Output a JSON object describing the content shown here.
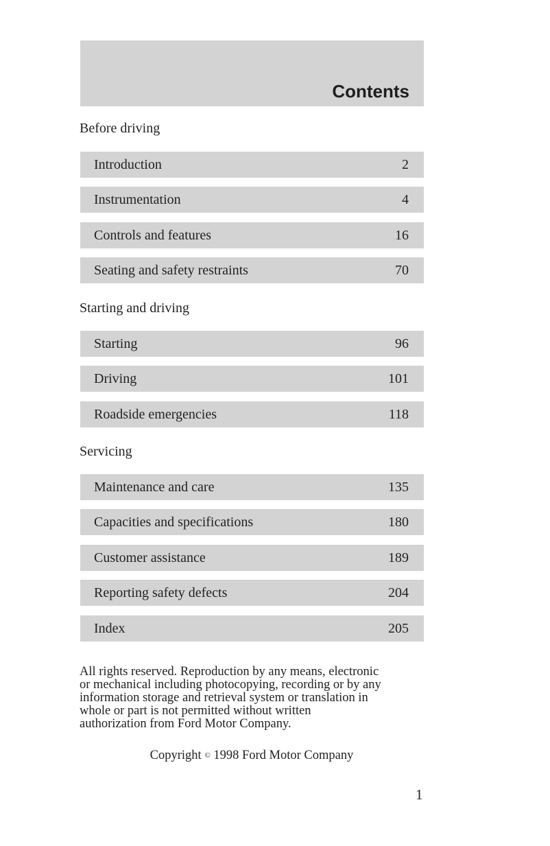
{
  "header": {
    "title": "Contents"
  },
  "sections": [
    {
      "title": "Before driving",
      "items": [
        {
          "label": "Introduction",
          "page": "2"
        },
        {
          "label": "Instrumentation",
          "page": "4"
        },
        {
          "label": "Controls and features",
          "page": "16"
        },
        {
          "label": "Seating and safety restraints",
          "page": "70"
        }
      ]
    },
    {
      "title": "Starting and driving",
      "items": [
        {
          "label": "Starting",
          "page": "96"
        },
        {
          "label": "Driving",
          "page": "101"
        },
        {
          "label": "Roadside emergencies",
          "page": "118"
        }
      ]
    },
    {
      "title": "Servicing",
      "items": [
        {
          "label": "Maintenance and care",
          "page": "135"
        },
        {
          "label": "Capacities and specifications",
          "page": "180"
        },
        {
          "label": "Customer assistance",
          "page": "189"
        },
        {
          "label": "Reporting safety defects",
          "page": "204"
        },
        {
          "label": "Index",
          "page": "205"
        }
      ]
    }
  ],
  "legal": {
    "lines": [
      "All rights reserved. Reproduction by any means, electronic",
      "or mechanical including photocopying, recording or by any",
      "information storage and retrieval system or translation in",
      "whole or part is not permitted without written",
      "authorization from Ford Motor Company."
    ]
  },
  "copyright": {
    "prefix": "Copyright",
    "symbol": "©",
    "text": "1998 Ford Motor Company"
  },
  "page_number": "1",
  "colors": {
    "band": "#d3d3d3",
    "text": "#222222"
  }
}
